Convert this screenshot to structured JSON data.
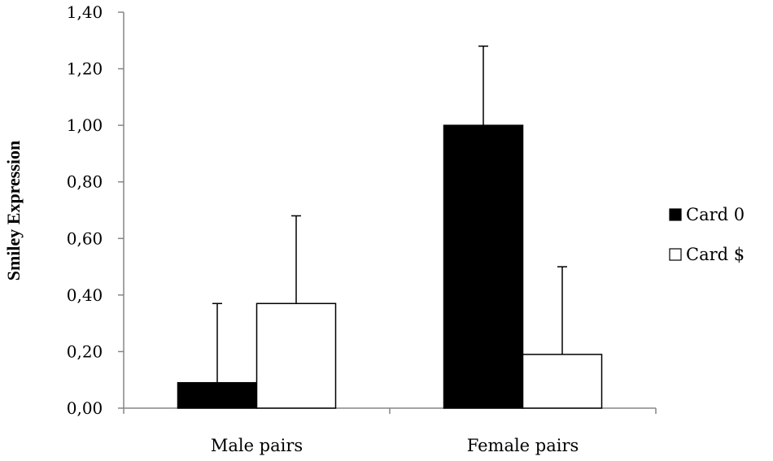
{
  "chart_data": {
    "type": "bar",
    "title": "",
    "xlabel": "",
    "ylabel": "Smiley Expression",
    "ylim": [
      0,
      1.4
    ],
    "yticks": [
      0,
      0.2,
      0.4,
      0.6,
      0.8,
      1.0,
      1.2,
      1.4
    ],
    "ytick_labels": [
      "0,00",
      "0,20",
      "0,40",
      "0,60",
      "0,80",
      "1,00",
      "1,20",
      "1,40"
    ],
    "categories": [
      "Male pairs",
      "Female pairs"
    ],
    "series": [
      {
        "name": "Card 0",
        "color": "#000000",
        "values": [
          0.09,
          1.0
        ],
        "error_upper": [
          0.28,
          0.28
        ]
      },
      {
        "name": "Card $",
        "color": "#ffffff",
        "values": [
          0.37,
          0.19
        ],
        "error_upper": [
          0.31,
          0.31
        ]
      }
    ],
    "grid": false,
    "legend_position": "right"
  }
}
